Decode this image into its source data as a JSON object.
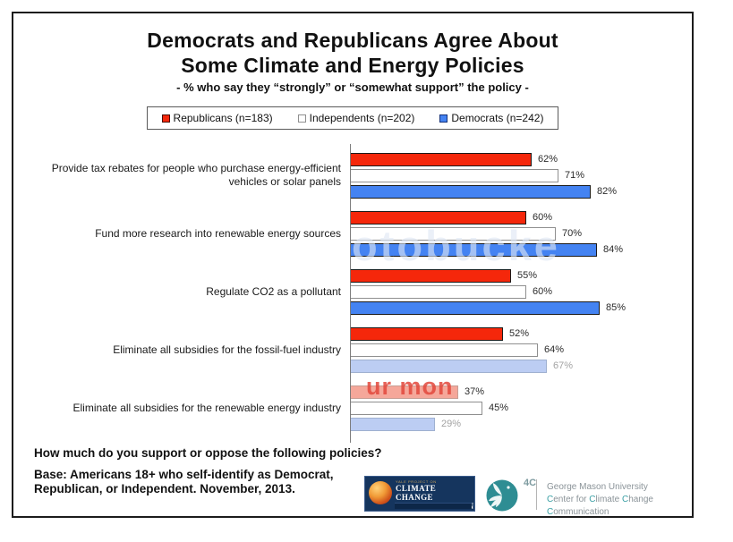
{
  "title": {
    "line1": "Democrats and Republicans Agree About",
    "line2": "Some Climate and Energy Policies",
    "subtitle": "- % who say they “strongly” or “somewhat support” the policy -"
  },
  "legend": [
    {
      "label": "Republicans (n=183)",
      "fill": "#f5270b",
      "border": "#4a0b02"
    },
    {
      "label": "Independents (n=202)",
      "fill": "#ffffff",
      "border": "#8f8f8f"
    },
    {
      "label": "Democrats (n=242)",
      "fill": "#4483f2",
      "border": "#12307a"
    }
  ],
  "chart_data": {
    "type": "bar",
    "orientation": "horizontal",
    "unit": "%",
    "xlim": [
      0,
      100
    ],
    "value_labels": true,
    "legend_position": "top",
    "categories": [
      "Provide tax rebates for people who purchase energy-efficient vehicles or solar panels",
      "Fund more research into renewable energy sources",
      "Regulate CO2 as a pollutant",
      "Eliminate all subsidies for the fossil-fuel industry",
      "Eliminate all subsidies for the renewable energy industry"
    ],
    "series": [
      {
        "name": "Republicans (n=183)",
        "fill": "#f5270b",
        "border": "#1a1a1a",
        "faded_fill": "#f5a79a",
        "faded_border": "#c79d94",
        "values": [
          62,
          60,
          55,
          52,
          37
        ]
      },
      {
        "name": "Independents (n=202)",
        "fill": "#ffffff",
        "border": "#8f8f8f",
        "faded_fill": "#ffffff",
        "faded_border": "#aaaaaa",
        "values": [
          71,
          70,
          60,
          64,
          45
        ]
      },
      {
        "name": "Democrats (n=242)",
        "fill": "#4483f2",
        "border": "#1a1a1a",
        "faded_fill": "#bccdf3",
        "faded_border": "#9fb0d0",
        "values": [
          82,
          84,
          85,
          67,
          29
        ]
      }
    ],
    "watermark_faded_bars": [
      [
        3,
        2
      ],
      [
        4,
        0
      ],
      [
        4,
        2
      ]
    ],
    "watermark_faded_value_labels": [
      [
        3,
        2
      ],
      [
        4,
        2
      ]
    ]
  },
  "watermarks": {
    "large_text": "otobucke",
    "red_text": "ur mon"
  },
  "footer": {
    "question": "How much do you support or oppose the following policies?",
    "base_line1": "Base: Americans 18+ who self-identify as Democrat,",
    "base_line2": "Republican, or Independent. November, 2013."
  },
  "logos": {
    "yale": {
      "top": "YALE PROJECT ON",
      "line1": "CLIMATE CHANGE",
      "line2": "COMMUNICATION"
    },
    "fourc": {
      "label": "4C"
    },
    "gmu": {
      "line1": "George Mason University",
      "line2": "Center for Climate Change Communication"
    }
  },
  "colors": {
    "republican_bar": "#f5270b",
    "independent_bar": "#ffffff",
    "democrat_bar": "#4483f2",
    "faded_republican_bar": "#f5a79a",
    "faded_democrat_bar": "#bccdf3",
    "value_label": "#2b2b2b",
    "faded_value_label": "#a3a3a3",
    "fourc_teal": "#2e8d93",
    "yale_navy": "#15355e"
  }
}
